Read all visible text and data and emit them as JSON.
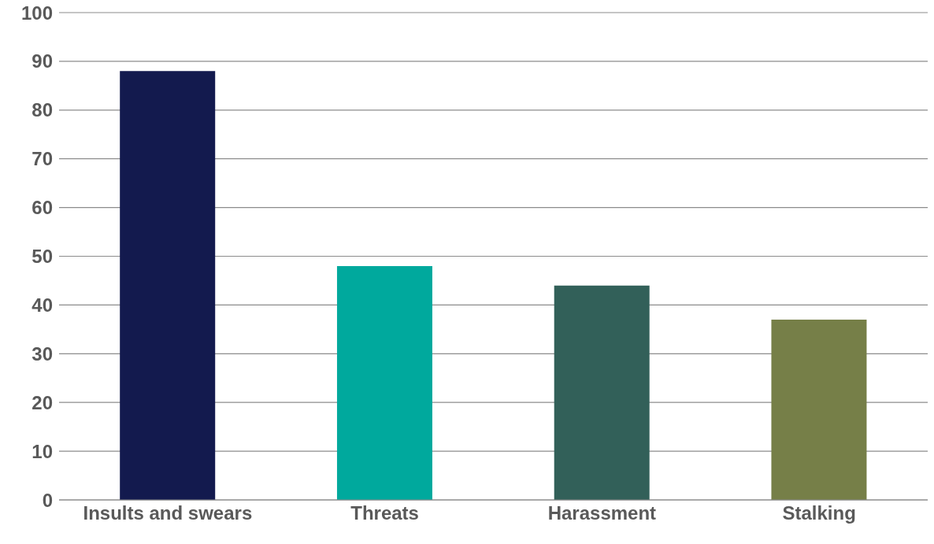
{
  "chart_data": {
    "type": "bar",
    "categories": [
      "Insults and swears",
      "Threats",
      "Harassment",
      "Stalking"
    ],
    "values": [
      88,
      48,
      44,
      37
    ],
    "colors": [
      "#131a4e",
      "#00a99d",
      "#326059",
      "#767f48"
    ],
    "ylim": [
      0,
      100
    ],
    "yticks": [
      0,
      10,
      20,
      30,
      40,
      50,
      60,
      70,
      80,
      90,
      100
    ],
    "grid": "y"
  }
}
